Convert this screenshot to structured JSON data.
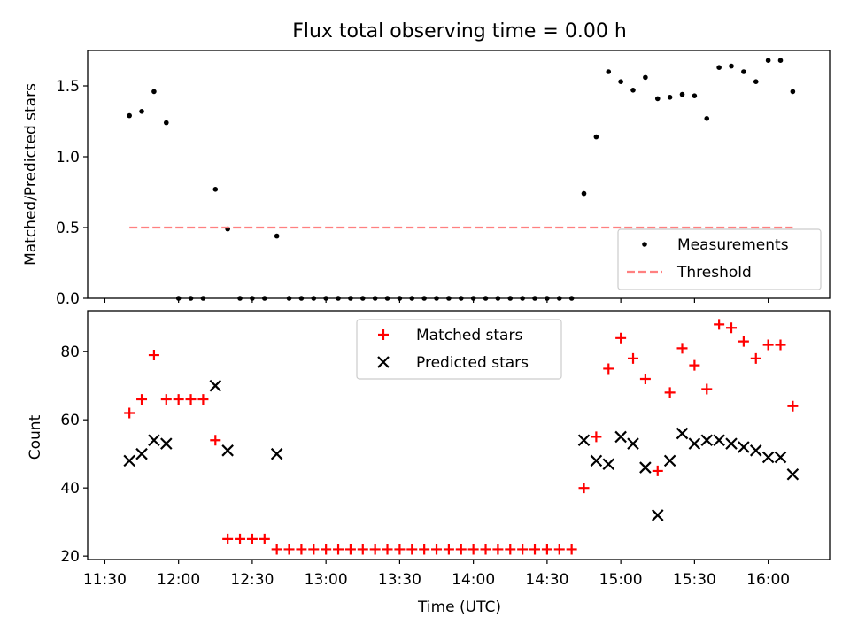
{
  "chart_data": [
    {
      "type": "scatter",
      "title": "Flux total observing time = 0.00 h",
      "xlabel": "",
      "ylabel": "Matched/Predicted stars",
      "ylim": [
        0,
        1.75
      ],
      "xlim": [
        "11:23",
        "16:25"
      ],
      "yticks": [
        0.0,
        0.5,
        1.0,
        1.5
      ],
      "ytick_labels": [
        "0.0",
        "0.5",
        "1.0",
        "1.5"
      ],
      "grid": false,
      "legend_position": "lower-right",
      "series": [
        {
          "name": "Measurements",
          "marker": "dot",
          "color": "#000000",
          "points": [
            [
              "11:40",
              1.29
            ],
            [
              "11:45",
              1.32
            ],
            [
              "11:50",
              1.46
            ],
            [
              "11:55",
              1.24
            ],
            [
              "12:00",
              0.0
            ],
            [
              "12:05",
              0.0
            ],
            [
              "12:10",
              0.0
            ],
            [
              "12:15",
              0.77
            ],
            [
              "12:20",
              0.49
            ],
            [
              "12:25",
              0.0
            ],
            [
              "12:30",
              0.0
            ],
            [
              "12:35",
              0.0
            ],
            [
              "12:40",
              0.44
            ],
            [
              "12:45",
              0.0
            ],
            [
              "12:50",
              0.0
            ],
            [
              "12:55",
              0.0
            ],
            [
              "13:00",
              0.0
            ],
            [
              "13:05",
              0.0
            ],
            [
              "13:10",
              0.0
            ],
            [
              "13:15",
              0.0
            ],
            [
              "13:20",
              0.0
            ],
            [
              "13:25",
              0.0
            ],
            [
              "13:30",
              0.0
            ],
            [
              "13:35",
              0.0
            ],
            [
              "13:40",
              0.0
            ],
            [
              "13:45",
              0.0
            ],
            [
              "13:50",
              0.0
            ],
            [
              "13:55",
              0.0
            ],
            [
              "14:00",
              0.0
            ],
            [
              "14:05",
              0.0
            ],
            [
              "14:10",
              0.0
            ],
            [
              "14:15",
              0.0
            ],
            [
              "14:20",
              0.0
            ],
            [
              "14:25",
              0.0
            ],
            [
              "14:30",
              0.0
            ],
            [
              "14:35",
              0.0
            ],
            [
              "14:40",
              0.0
            ],
            [
              "14:45",
              0.74
            ],
            [
              "14:50",
              1.14
            ],
            [
              "14:55",
              1.6
            ],
            [
              "15:00",
              1.53
            ],
            [
              "15:05",
              1.47
            ],
            [
              "15:10",
              1.56
            ],
            [
              "15:15",
              1.41
            ],
            [
              "15:20",
              1.42
            ],
            [
              "15:25",
              1.44
            ],
            [
              "15:30",
              1.43
            ],
            [
              "15:35",
              1.27
            ],
            [
              "15:40",
              1.63
            ],
            [
              "15:45",
              1.64
            ],
            [
              "15:50",
              1.6
            ],
            [
              "15:55",
              1.53
            ],
            [
              "16:00",
              1.68
            ],
            [
              "16:05",
              1.68
            ],
            [
              "16:10",
              1.46
            ]
          ]
        },
        {
          "name": "Threshold",
          "marker": "dashed-line",
          "color": "#ff8080",
          "points": [
            [
              "11:40",
              0.5
            ],
            [
              "16:10",
              0.5
            ]
          ]
        }
      ]
    },
    {
      "type": "scatter",
      "title": "",
      "xlabel": "Time (UTC)",
      "ylabel": "Count",
      "ylim": [
        19,
        92
      ],
      "xlim": [
        "11:23",
        "16:25"
      ],
      "yticks": [
        20,
        40,
        60,
        80
      ],
      "ytick_labels": [
        "20",
        "40",
        "60",
        "80"
      ],
      "xticks": [
        "11:30",
        "12:00",
        "12:30",
        "13:00",
        "13:30",
        "14:00",
        "14:30",
        "15:00",
        "15:30",
        "16:00"
      ],
      "grid": false,
      "legend_position": "upper-center",
      "series": [
        {
          "name": "Matched stars",
          "marker": "plus",
          "color": "#ff0000",
          "points": [
            [
              "11:40",
              62
            ],
            [
              "11:45",
              66
            ],
            [
              "11:50",
              79
            ],
            [
              "11:55",
              66
            ],
            [
              "12:00",
              66
            ],
            [
              "12:05",
              66
            ],
            [
              "12:10",
              66
            ],
            [
              "12:15",
              54
            ],
            [
              "12:20",
              25
            ],
            [
              "12:25",
              25
            ],
            [
              "12:30",
              25
            ],
            [
              "12:35",
              25
            ],
            [
              "12:40",
              22
            ],
            [
              "12:45",
              22
            ],
            [
              "12:50",
              22
            ],
            [
              "12:55",
              22
            ],
            [
              "13:00",
              22
            ],
            [
              "13:05",
              22
            ],
            [
              "13:10",
              22
            ],
            [
              "13:15",
              22
            ],
            [
              "13:20",
              22
            ],
            [
              "13:25",
              22
            ],
            [
              "13:30",
              22
            ],
            [
              "13:35",
              22
            ],
            [
              "13:40",
              22
            ],
            [
              "13:45",
              22
            ],
            [
              "13:50",
              22
            ],
            [
              "13:55",
              22
            ],
            [
              "14:00",
              22
            ],
            [
              "14:05",
              22
            ],
            [
              "14:10",
              22
            ],
            [
              "14:15",
              22
            ],
            [
              "14:20",
              22
            ],
            [
              "14:25",
              22
            ],
            [
              "14:30",
              22
            ],
            [
              "14:35",
              22
            ],
            [
              "14:40",
              22
            ],
            [
              "14:45",
              40
            ],
            [
              "14:50",
              55
            ],
            [
              "14:55",
              75
            ],
            [
              "15:00",
              84
            ],
            [
              "15:05",
              78
            ],
            [
              "15:10",
              72
            ],
            [
              "15:15",
              45
            ],
            [
              "15:20",
              68
            ],
            [
              "15:25",
              81
            ],
            [
              "15:30",
              76
            ],
            [
              "15:35",
              69
            ],
            [
              "15:40",
              88
            ],
            [
              "15:45",
              87
            ],
            [
              "15:50",
              83
            ],
            [
              "15:55",
              78
            ],
            [
              "16:00",
              82
            ],
            [
              "16:05",
              82
            ],
            [
              "16:10",
              64
            ]
          ]
        },
        {
          "name": "Predicted stars",
          "marker": "x",
          "color": "#000000",
          "points": [
            [
              "11:40",
              48
            ],
            [
              "11:45",
              50
            ],
            [
              "11:50",
              54
            ],
            [
              "11:55",
              53
            ],
            [
              "12:15",
              70
            ],
            [
              "12:20",
              51
            ],
            [
              "12:40",
              50
            ],
            [
              "14:45",
              54
            ],
            [
              "14:50",
              48
            ],
            [
              "14:55",
              47
            ],
            [
              "15:00",
              55
            ],
            [
              "15:05",
              53
            ],
            [
              "15:10",
              46
            ],
            [
              "15:15",
              32
            ],
            [
              "15:20",
              48
            ],
            [
              "15:25",
              56
            ],
            [
              "15:30",
              53
            ],
            [
              "15:35",
              54
            ],
            [
              "15:40",
              54
            ],
            [
              "15:45",
              53
            ],
            [
              "15:50",
              52
            ],
            [
              "15:55",
              51
            ],
            [
              "16:00",
              49
            ],
            [
              "16:05",
              49
            ],
            [
              "16:10",
              44
            ]
          ]
        }
      ]
    }
  ]
}
